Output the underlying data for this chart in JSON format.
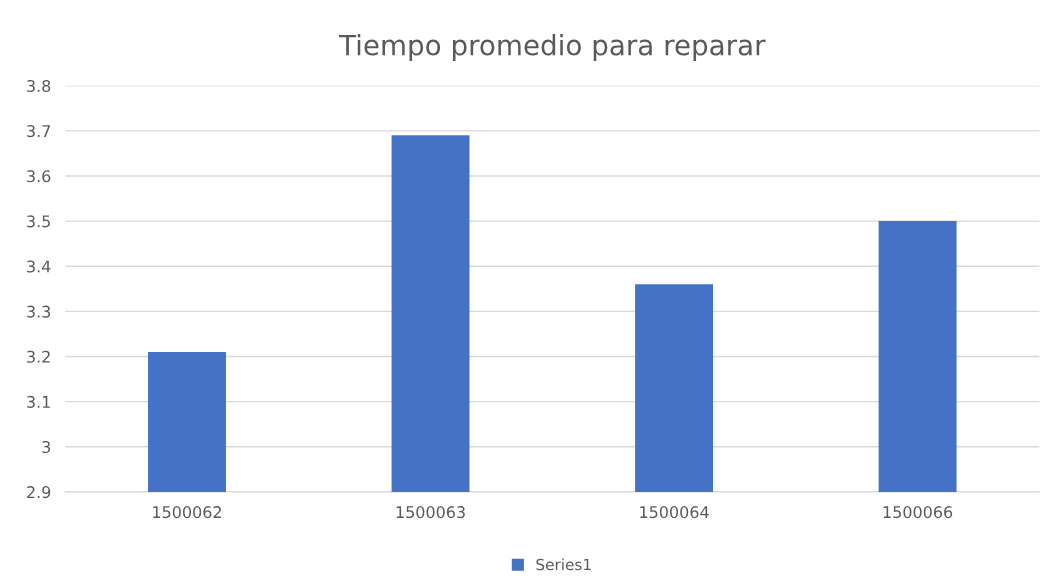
{
  "chart_data": {
    "type": "bar",
    "title": "Tiempo promedio para reparar",
    "categories": [
      "1500062",
      "1500063",
      "1500064",
      "1500066"
    ],
    "series": [
      {
        "name": "Series1",
        "color": "#4472c4",
        "values": [
          3.21,
          3.69,
          3.36,
          3.5
        ]
      }
    ],
    "ylim": [
      2.9,
      3.8
    ],
    "yticks": [
      2.9,
      3,
      3.1,
      3.2,
      3.3,
      3.4,
      3.5,
      3.6,
      3.7,
      3.8
    ],
    "grid": "y",
    "legend": "bottom"
  }
}
